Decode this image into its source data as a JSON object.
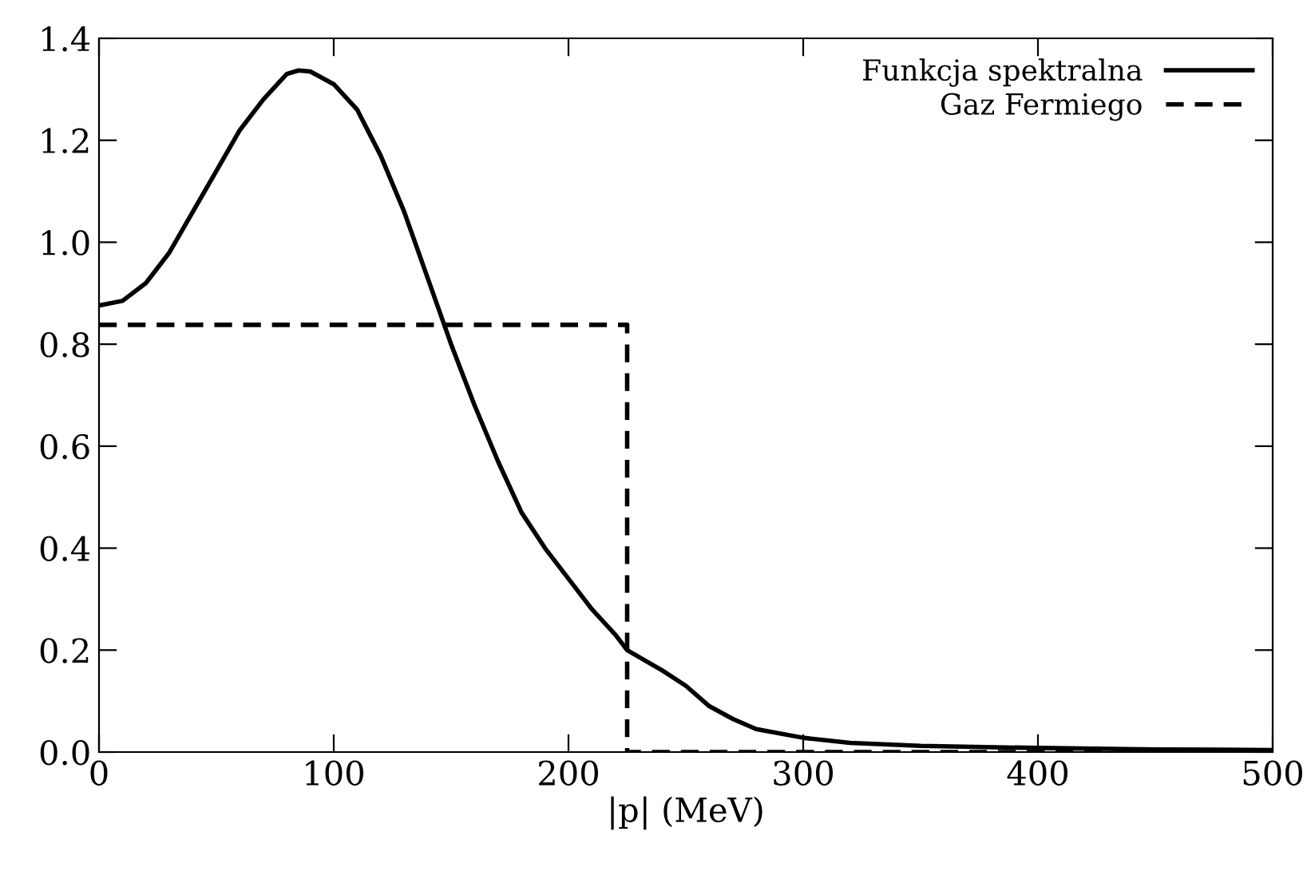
{
  "chart_data": {
    "type": "line",
    "xlabel": "|p| (MeV)",
    "xlim": [
      0,
      500
    ],
    "xticks": [
      0,
      100,
      200,
      300,
      400,
      500
    ],
    "ylim": [
      0,
      1.4
    ],
    "yticks": [
      {
        "value": 0,
        "label": "0.0"
      },
      {
        "value": 0.2,
        "label": "0.2"
      },
      {
        "value": 0.4,
        "label": "0.4"
      },
      {
        "value": 0.6,
        "label": "0.6"
      },
      {
        "value": 0.8,
        "label": "0.8"
      },
      {
        "value": 1.0,
        "label": "1.0"
      },
      {
        "value": 1.2,
        "label": "1.2"
      },
      {
        "value": 1.4,
        "label": "1.4"
      }
    ],
    "grid": false,
    "legend": "top right",
    "marker": "none",
    "series": [
      {
        "name": "Funkcja spektralna",
        "color": "#000000",
        "line_style": "solid",
        "x": [
          0,
          10,
          20,
          30,
          40,
          50,
          60,
          70,
          80,
          85,
          90,
          100,
          110,
          120,
          130,
          140,
          150,
          160,
          170,
          180,
          190,
          200,
          210,
          220,
          225,
          240,
          250,
          260,
          270,
          280,
          300,
          320,
          350,
          400,
          450,
          500
        ],
        "values": [
          0.876,
          0.885,
          0.92,
          0.98,
          1.06,
          1.14,
          1.22,
          1.28,
          1.33,
          1.337,
          1.335,
          1.31,
          1.26,
          1.17,
          1.06,
          0.93,
          0.8,
          0.68,
          0.57,
          0.47,
          0.4,
          0.34,
          0.28,
          0.23,
          0.2,
          0.16,
          0.13,
          0.09,
          0.065,
          0.045,
          0.028,
          0.018,
          0.012,
          0.008,
          0.005,
          0.004
        ]
      },
      {
        "name": "Gaz Fermiego",
        "color": "#000000",
        "line_style": "dashed",
        "type": "step",
        "x": [
          0,
          225,
          500
        ],
        "values": [
          0.838,
          0,
          0
        ]
      }
    ]
  }
}
